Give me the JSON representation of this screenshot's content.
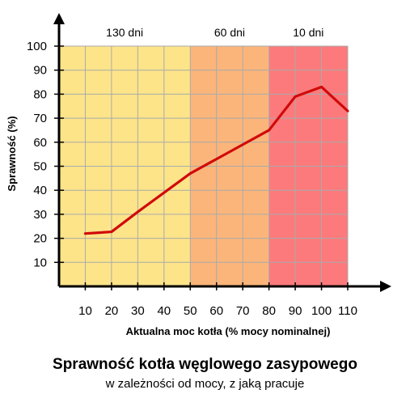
{
  "chart_data": {
    "type": "line",
    "title": "Sprawność kotła węglowego zasypowego",
    "subtitle": "w zależności od mocy, z jaką pracuje",
    "xlabel": "Aktualna moc kotła (% mocy nominalnej)",
    "ylabel": "Sprawność (%)",
    "xlim": [
      0,
      110
    ],
    "ylim": [
      0,
      100
    ],
    "x_ticks": [
      "10",
      "20",
      "30",
      "40",
      "50",
      "60",
      "70",
      "80",
      "90",
      "100",
      "110"
    ],
    "y_ticks": [
      "10",
      "20",
      "30",
      "40",
      "50",
      "60",
      "70",
      "80",
      "90",
      "100"
    ],
    "grid": true,
    "bands": [
      {
        "label": "130 dni",
        "x_from": 0,
        "x_to": 50,
        "color": "#fde489"
      },
      {
        "label": "60 dni",
        "x_from": 50,
        "x_to": 80,
        "color": "#fbb57a"
      },
      {
        "label": "10 dni",
        "x_from": 80,
        "x_to": 110,
        "color": "#fc7a7c"
      }
    ],
    "series": [
      {
        "color": "#d10a0a",
        "x": [
          10,
          20,
          30,
          40,
          50,
          60,
          70,
          80,
          90,
          100,
          110
        ],
        "y": [
          22,
          22.7,
          31,
          39,
          47,
          53,
          59,
          65,
          79,
          83,
          73
        ]
      }
    ]
  }
}
